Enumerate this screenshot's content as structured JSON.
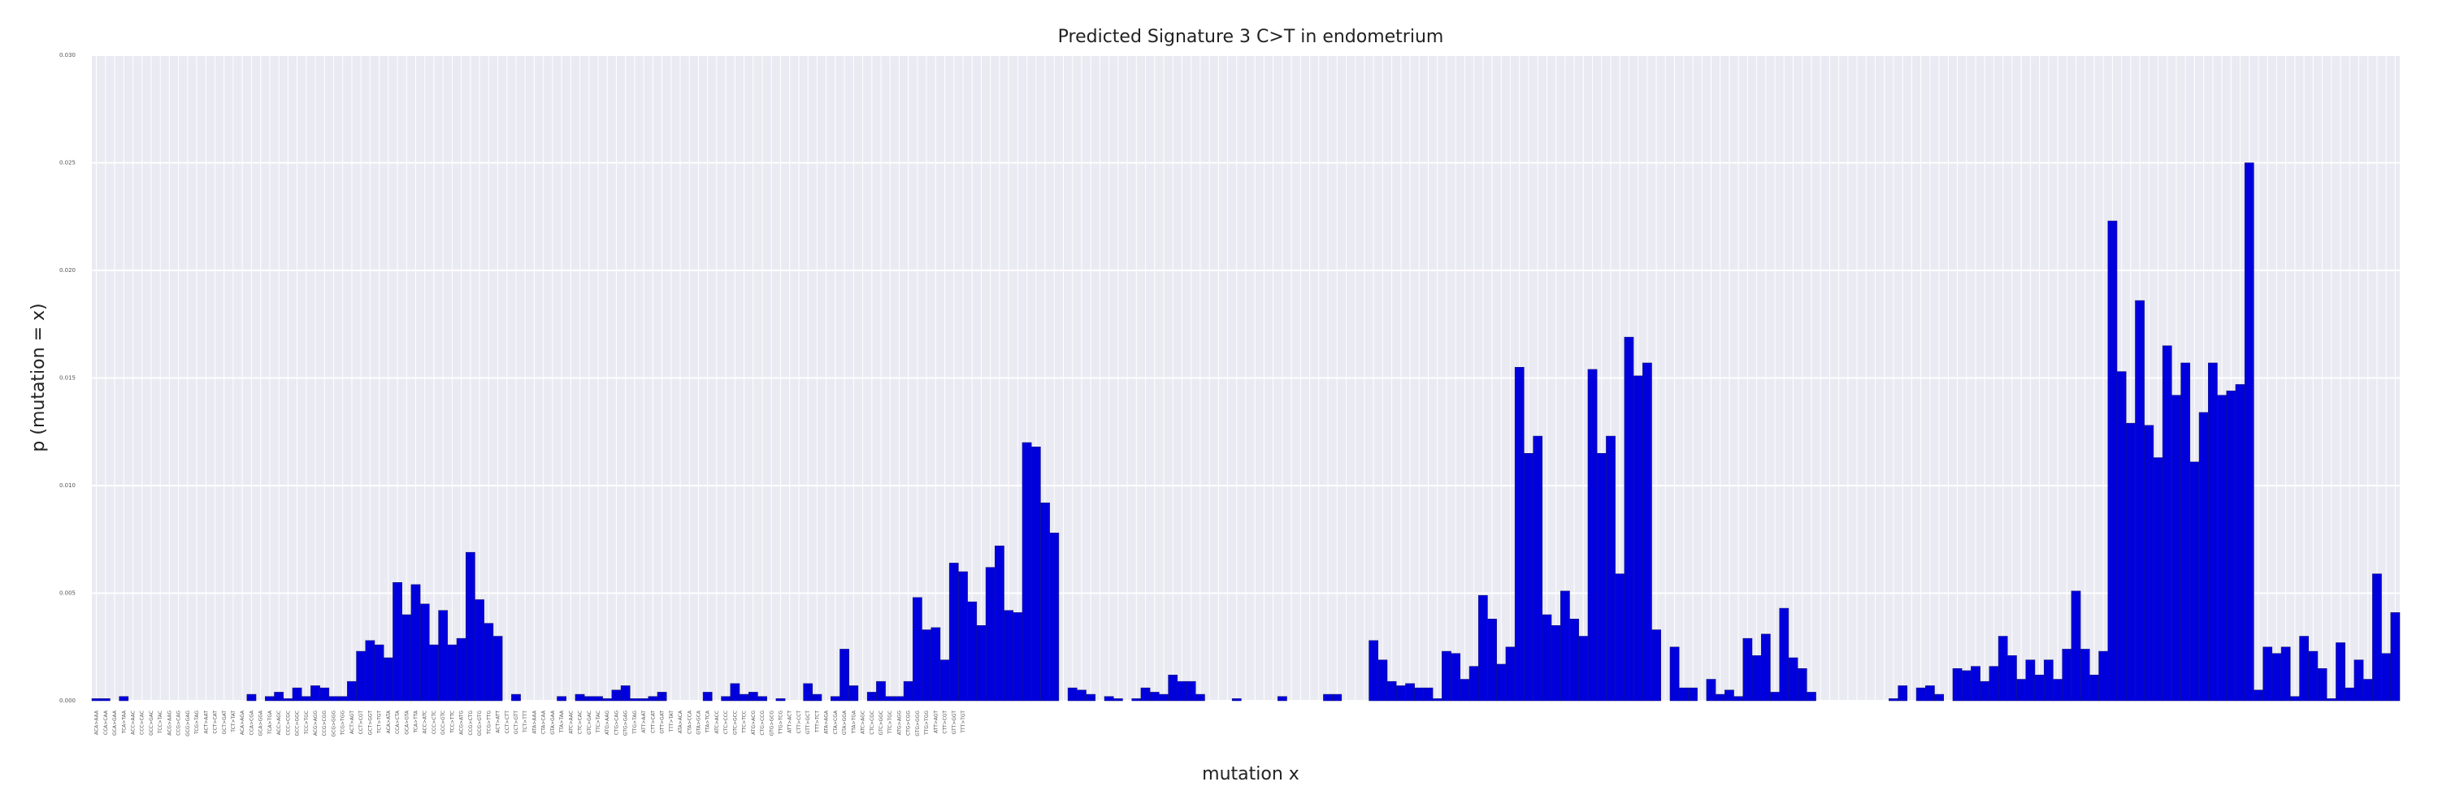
{
  "chart_data": {
    "type": "bar",
    "title": "Predicted Signature 3 C>T in endometrium",
    "xlabel": "mutation x",
    "ylabel": "p (mutation = x)",
    "ylim": [
      0,
      0.03
    ],
    "yticks": [
      "0.000",
      "0.005",
      "0.010",
      "0.015",
      "0.020",
      "0.025",
      "0.030"
    ],
    "grid": true,
    "bar_color": "#0000dd",
    "plot_background": "#eaeaf2",
    "bases": [
      "A",
      "C",
      "G",
      "T"
    ],
    "values": [
      0.0001,
      0.0001,
      0.0,
      0.0002,
      0.0,
      0.0,
      0.0,
      0.0,
      0.0,
      0.0,
      0.0,
      0.0,
      0.0,
      0.0,
      0.0,
      0.0,
      0.0,
      0.0003,
      0.0,
      0.0002,
      0.0004,
      0.0001,
      0.0006,
      0.0002,
      0.0007,
      0.0006,
      0.0002,
      0.0002,
      0.0009,
      0.0023,
      0.0028,
      0.0026,
      0.002,
      0.0055,
      0.004,
      0.0054,
      0.0045,
      0.0026,
      0.0042,
      0.0026,
      0.0029,
      0.0069,
      0.0047,
      0.0036,
      0.003,
      0.0,
      0.0003,
      0.0,
      0.0,
      0.0,
      0.0,
      0.0002,
      0.0,
      0.0003,
      0.0002,
      0.0002,
      0.0001,
      0.0005,
      0.0007,
      0.0001,
      0.0001,
      0.0002,
      0.0004,
      0.0,
      0.0,
      0.0,
      0.0,
      0.0004,
      0.0,
      0.0002,
      0.0008,
      0.0003,
      0.0004,
      0.0002,
      0.0,
      0.0001,
      0.0,
      0.0,
      0.0008,
      0.0003,
      0.0,
      0.0002,
      0.0024,
      0.0007,
      0.0,
      0.0004,
      0.0009,
      0.0002,
      0.0002,
      0.0009,
      0.0048,
      0.0033,
      0.0034,
      0.0019,
      0.0064,
      0.006,
      0.0046,
      0.0035,
      0.0062,
      0.0072,
      0.0042,
      0.0041,
      0.012,
      0.0118,
      0.0092,
      0.0078,
      0.0,
      0.0006,
      0.0005,
      0.0003,
      0.0,
      0.0002,
      0.0001,
      0.0,
      0.0001,
      0.0006,
      0.0004,
      0.0003,
      0.0012,
      0.0009,
      0.0009,
      0.0003,
      0.0,
      0.0,
      0.0,
      0.0001,
      0.0,
      0.0,
      0.0,
      0.0,
      0.0002,
      0.0,
      0.0,
      0.0,
      0.0,
      0.0003,
      0.0003,
      0.0,
      0.0,
      0.0,
      0.0028,
      0.0019,
      0.0009,
      0.0007,
      0.0008,
      0.0006,
      0.0006,
      0.0001,
      0.0023,
      0.0022,
      0.001,
      0.0016,
      0.0049,
      0.0038,
      0.0017,
      0.0025,
      0.0155,
      0.0115,
      0.0123,
      0.004,
      0.0035,
      0.0051,
      0.0038,
      0.003,
      0.0154,
      0.0115,
      0.0123,
      0.0059,
      0.0169,
      0.0151,
      0.0157,
      0.0033,
      0.0,
      0.0025,
      0.0006,
      0.0006,
      0.0,
      0.001,
      0.0003,
      0.0005,
      0.0002,
      0.0029,
      0.0021,
      0.0031,
      0.0004,
      0.0043,
      0.002,
      0.0015,
      0.0004,
      0.0,
      0.0,
      0.0,
      0.0,
      0.0,
      0.0,
      0.0,
      0.0,
      0.0001,
      0.0007,
      0.0,
      0.0006,
      0.0007,
      0.0003,
      0.0,
      0.0015,
      0.0014,
      0.0016,
      0.0009,
      0.0016,
      0.003,
      0.0021,
      0.001,
      0.0019,
      0.0012,
      0.0019,
      0.001,
      0.0024,
      0.0051,
      0.0024,
      0.0012,
      0.0023,
      0.0223,
      0.0153,
      0.0129,
      0.0186,
      0.0128,
      0.0113,
      0.0165,
      0.0142,
      0.0157,
      0.0111,
      0.0134,
      0.0157,
      0.0142,
      0.0144,
      0.0147,
      0.025,
      0.0005,
      0.0025,
      0.0022,
      0.0025,
      0.0002,
      0.003,
      0.0023,
      0.0015,
      0.0001,
      0.0027,
      0.0006,
      0.0019,
      0.001,
      0.0059,
      0.0022,
      0.0041
    ]
  }
}
